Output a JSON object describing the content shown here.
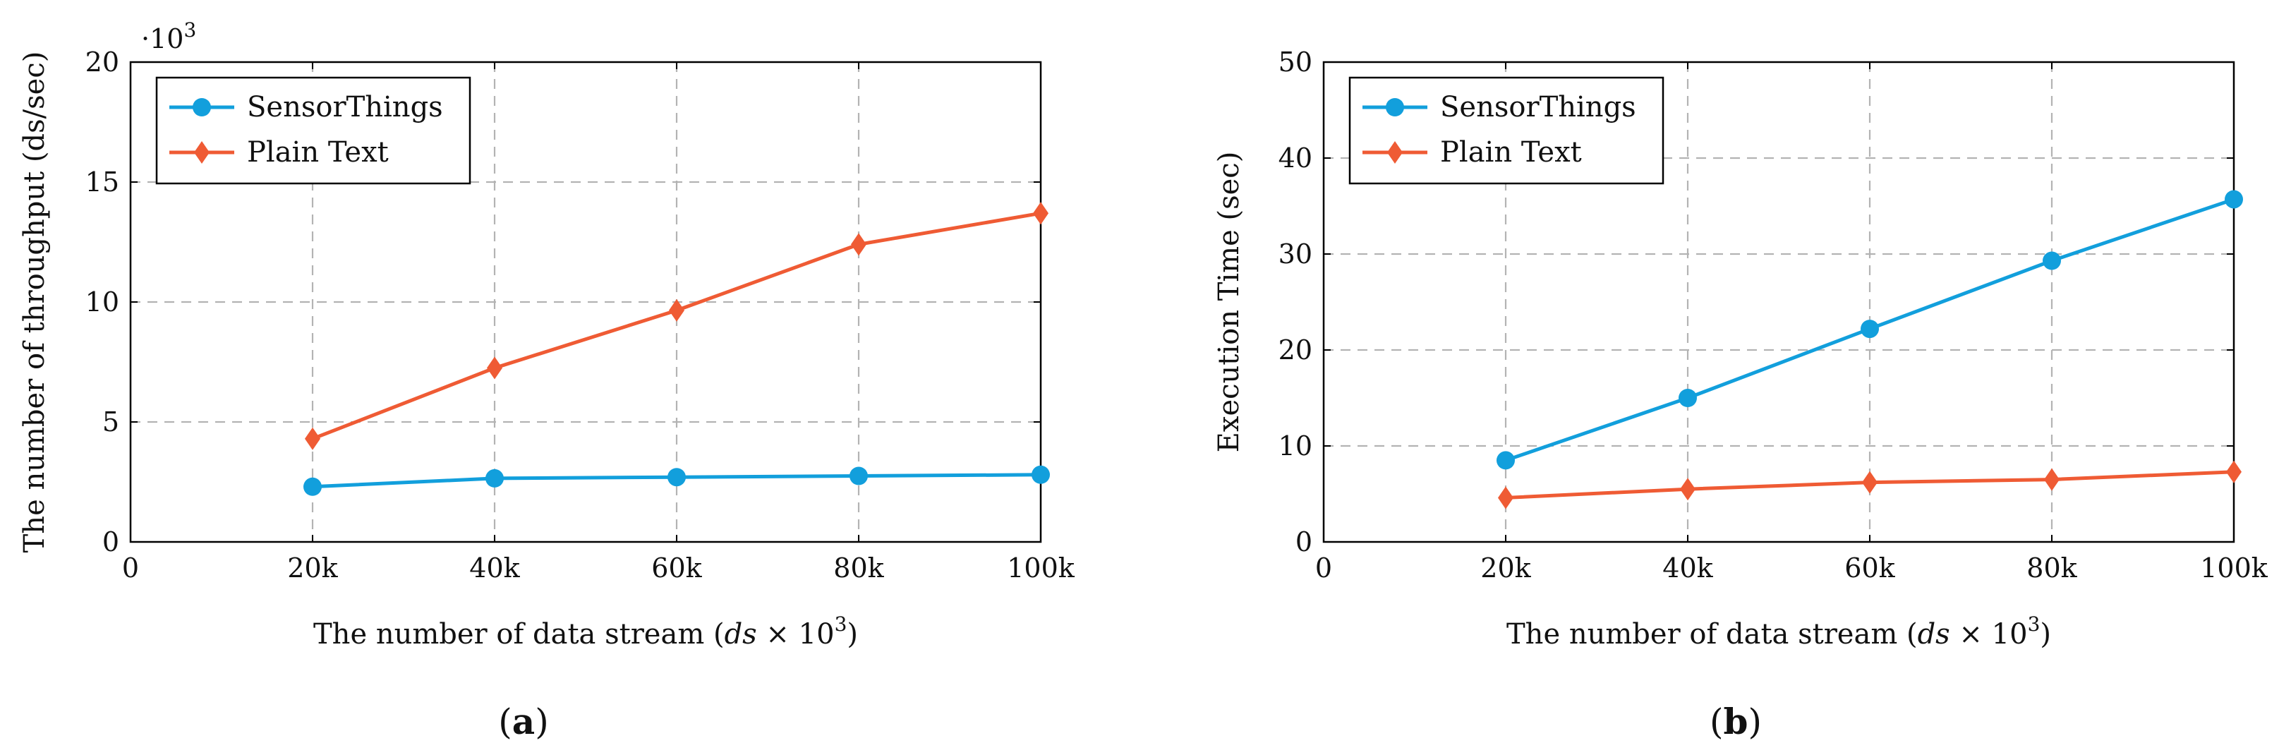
{
  "colors": {
    "sensorthings": "#129fdc",
    "plaintext": "#ef5b34"
  },
  "chart_data": [
    {
      "type": "line",
      "panel": "(a)",
      "panel_letter": "a",
      "title": "",
      "xlabel_prefix": "The number of data stream (",
      "xlabel_var": "ds",
      "xlabel_mid": " × 10",
      "xlabel_sup": "3",
      "xlabel_suffix": ")",
      "ylabel": "The number of throughput (ds/sec)",
      "y_multiplier_base": "·10",
      "y_multiplier_exp": "3",
      "x": [
        20,
        40,
        60,
        80,
        100
      ],
      "xlim": [
        0,
        100
      ],
      "ylim": [
        0,
        20
      ],
      "x_ticks": [
        0,
        20,
        40,
        60,
        80,
        100
      ],
      "x_tick_labels": [
        "0",
        "20k",
        "40k",
        "60k",
        "80k",
        "100k"
      ],
      "y_ticks": [
        0,
        5,
        10,
        15,
        20
      ],
      "y_tick_labels": [
        "0",
        "5",
        "10",
        "15",
        "20"
      ],
      "grid": true,
      "legend_position": "top-left",
      "series": [
        {
          "name": "SensorThings",
          "marker": "circle",
          "color_key": "sensorthings",
          "values": [
            2.3,
            2.65,
            2.7,
            2.75,
            2.8
          ]
        },
        {
          "name": "Plain Text",
          "marker": "diamond",
          "color_key": "plaintext",
          "values": [
            4.3,
            7.25,
            9.65,
            12.4,
            13.7
          ]
        }
      ]
    },
    {
      "type": "line",
      "panel": "(b)",
      "panel_letter": "b",
      "title": "",
      "xlabel_prefix": "The number of data stream (",
      "xlabel_var": "ds",
      "xlabel_mid": " × 10",
      "xlabel_sup": "3",
      "xlabel_suffix": ")",
      "ylabel": "Execution Time (sec)",
      "x": [
        20,
        40,
        60,
        80,
        100
      ],
      "xlim": [
        0,
        100
      ],
      "ylim": [
        0,
        50
      ],
      "x_ticks": [
        0,
        20,
        40,
        60,
        80,
        100
      ],
      "x_tick_labels": [
        "0",
        "20k",
        "40k",
        "60k",
        "80k",
        "100k"
      ],
      "y_ticks": [
        0,
        10,
        20,
        30,
        40,
        50
      ],
      "y_tick_labels": [
        "0",
        "10",
        "20",
        "30",
        "40",
        "50"
      ],
      "grid": true,
      "legend_position": "top-left",
      "series": [
        {
          "name": "SensorThings",
          "marker": "circle",
          "color_key": "sensorthings",
          "values": [
            8.5,
            15.0,
            22.2,
            29.3,
            35.7
          ]
        },
        {
          "name": "Plain Text",
          "marker": "diamond",
          "color_key": "plaintext",
          "values": [
            4.6,
            5.5,
            6.2,
            6.5,
            7.3
          ]
        }
      ]
    }
  ]
}
